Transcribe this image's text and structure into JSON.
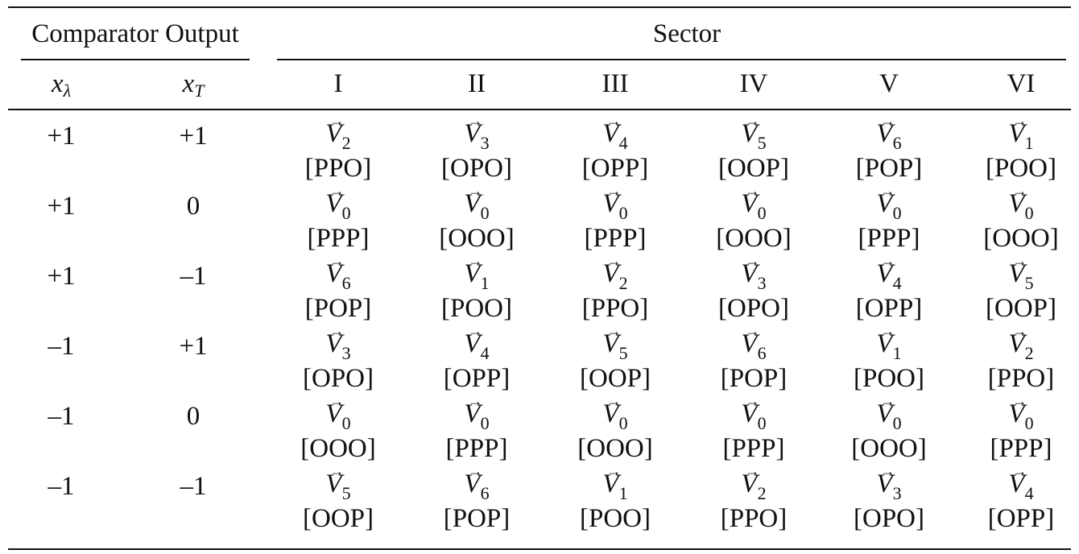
{
  "header": {
    "comparator_output": "Comparator Output",
    "sector": "Sector"
  },
  "subheader": {
    "x_lambda": {
      "base": "x",
      "sub": "λ"
    },
    "x_T": {
      "base": "x",
      "sub": "T"
    },
    "sectors": [
      "I",
      "II",
      "III",
      "IV",
      "V",
      "VI"
    ]
  },
  "rows": [
    {
      "xl": "+1",
      "xt": "+1",
      "cells": [
        {
          "v": "V",
          "sub": "2",
          "state": "[PPO]"
        },
        {
          "v": "V",
          "sub": "3",
          "state": "[OPO]"
        },
        {
          "v": "V",
          "sub": "4",
          "state": "[OPP]"
        },
        {
          "v": "V",
          "sub": "5",
          "state": "[OOP]"
        },
        {
          "v": "V",
          "sub": "6",
          "state": "[POP]"
        },
        {
          "v": "V",
          "sub": "1",
          "state": "[POO]"
        }
      ]
    },
    {
      "xl": "+1",
      "xt": "0",
      "cells": [
        {
          "v": "V",
          "sub": "0",
          "state": "[PPP]"
        },
        {
          "v": "V",
          "sub": "0",
          "state": "[OOO]"
        },
        {
          "v": "V",
          "sub": "0",
          "state": "[PPP]"
        },
        {
          "v": "V",
          "sub": "0",
          "state": "[OOO]"
        },
        {
          "v": "V",
          "sub": "0",
          "state": "[PPP]"
        },
        {
          "v": "V",
          "sub": "0",
          "state": "[OOO]"
        }
      ]
    },
    {
      "xl": "+1",
      "xt": "–1",
      "cells": [
        {
          "v": "V",
          "sub": "6",
          "state": "[POP]"
        },
        {
          "v": "V",
          "sub": "1",
          "state": "[POO]"
        },
        {
          "v": "V",
          "sub": "2",
          "state": "[PPO]"
        },
        {
          "v": "V",
          "sub": "3",
          "state": "[OPO]"
        },
        {
          "v": "V",
          "sub": "4",
          "state": "[OPP]"
        },
        {
          "v": "V",
          "sub": "5",
          "state": "[OOP]"
        }
      ]
    },
    {
      "xl": "–1",
      "xt": "+1",
      "cells": [
        {
          "v": "V",
          "sub": "3",
          "state": "[OPO]"
        },
        {
          "v": "V",
          "sub": "4",
          "state": "[OPP]"
        },
        {
          "v": "V",
          "sub": "5",
          "state": "[OOP]"
        },
        {
          "v": "V",
          "sub": "6",
          "state": "[POP]"
        },
        {
          "v": "V",
          "sub": "1",
          "state": "[POO]"
        },
        {
          "v": "V",
          "sub": "2",
          "state": "[PPO]"
        }
      ]
    },
    {
      "xl": "–1",
      "xt": "0",
      "cells": [
        {
          "v": "V",
          "sub": "0",
          "state": "[OOO]"
        },
        {
          "v": "V",
          "sub": "0",
          "state": "[PPP]"
        },
        {
          "v": "V",
          "sub": "0",
          "state": "[OOO]"
        },
        {
          "v": "V",
          "sub": "0",
          "state": "[PPP]"
        },
        {
          "v": "V",
          "sub": "0",
          "state": "[OOO]"
        },
        {
          "v": "V",
          "sub": "0",
          "state": "[PPP]"
        }
      ]
    },
    {
      "xl": "–1",
      "xt": "–1",
      "cells": [
        {
          "v": "V",
          "sub": "5",
          "state": "[OOP]"
        },
        {
          "v": "V",
          "sub": "6",
          "state": "[POP]"
        },
        {
          "v": "V",
          "sub": "1",
          "state": "[POO]"
        },
        {
          "v": "V",
          "sub": "2",
          "state": "[PPO]"
        },
        {
          "v": "V",
          "sub": "3",
          "state": "[OPO]"
        },
        {
          "v": "V",
          "sub": "4",
          "state": "[OPP]"
        }
      ]
    }
  ]
}
